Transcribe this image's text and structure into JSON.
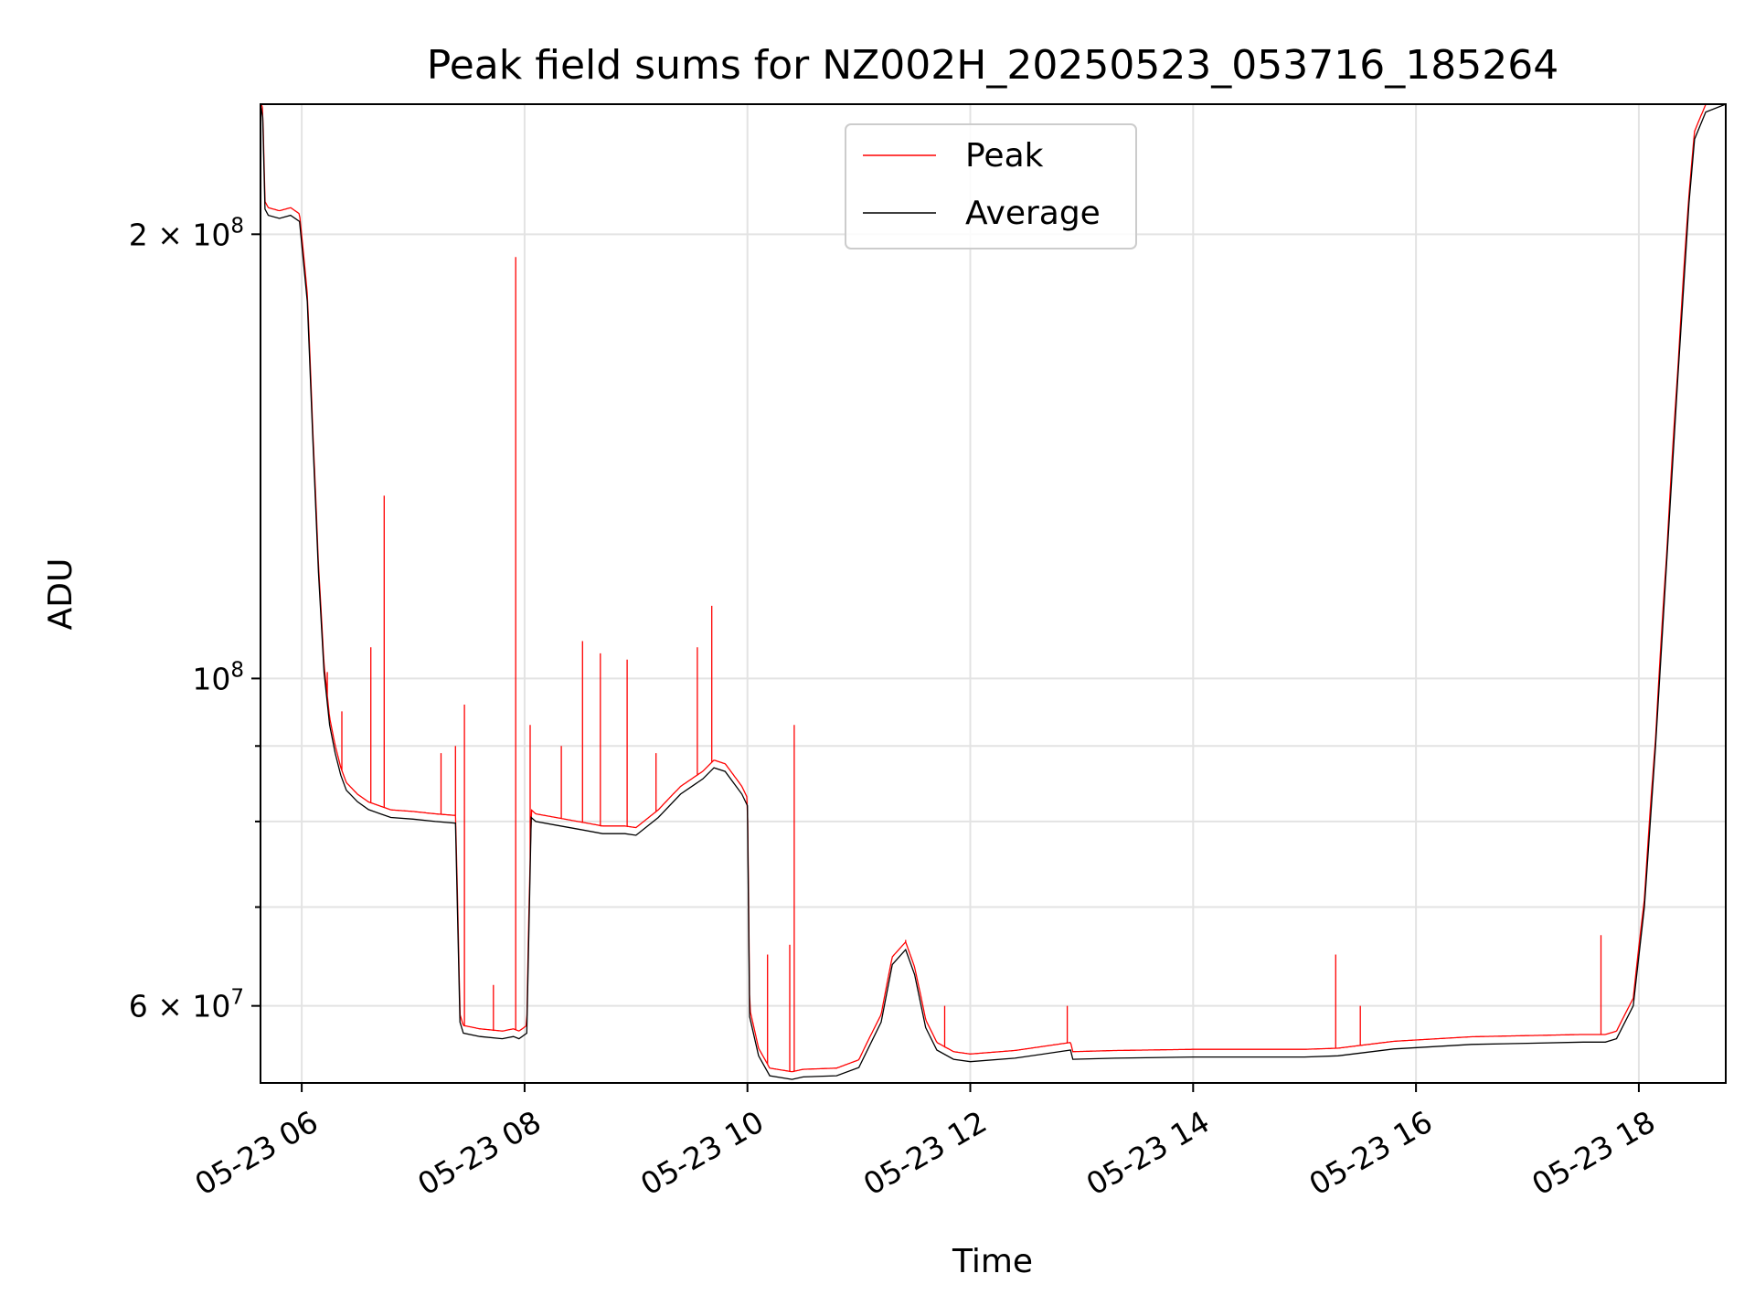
{
  "chart_data": {
    "type": "line",
    "title": "Peak field sums for NZ002H_20250523_053716_185264",
    "xlabel": "Time",
    "ylabel": "ADU",
    "x_unit": "hours of day, 2025-05-23",
    "xlim": [
      5.63,
      18.78
    ],
    "ylim": [
      53200000,
      245000000
    ],
    "yscale": "log",
    "grid": true,
    "legend_position": "top-center",
    "x_ticks": [
      {
        "value": 6,
        "label": "05-23 06"
      },
      {
        "value": 8,
        "label": "05-23 08"
      },
      {
        "value": 10,
        "label": "05-23 10"
      },
      {
        "value": 12,
        "label": "05-23 12"
      },
      {
        "value": 14,
        "label": "05-23 14"
      },
      {
        "value": 16,
        "label": "05-23 16"
      },
      {
        "value": 18,
        "label": "05-23 18"
      }
    ],
    "y_ticks": [
      {
        "value": 200000000,
        "base": "2 × 10",
        "exp": "8"
      },
      {
        "value": 100000000,
        "base": "10",
        "exp": "8"
      },
      {
        "value": 60000000,
        "base": "6 × 10",
        "exp": "7"
      }
    ],
    "y_minor_ticks": [
      70000000,
      80000000,
      90000000
    ],
    "series": [
      {
        "name": "Average",
        "color": "#000000",
        "x": [
          5.63,
          5.65,
          5.67,
          5.7,
          5.8,
          5.9,
          5.98,
          6.05,
          6.1,
          6.15,
          6.2,
          6.25,
          6.3,
          6.35,
          6.4,
          6.5,
          6.6,
          6.7,
          6.8,
          7.0,
          7.2,
          7.38,
          7.42,
          7.45,
          7.6,
          7.8,
          7.9,
          7.95,
          8.02,
          8.06,
          8.1,
          8.3,
          8.5,
          8.7,
          8.9,
          9.0,
          9.2,
          9.4,
          9.6,
          9.7,
          9.8,
          9.95,
          10.0,
          10.02,
          10.1,
          10.2,
          10.4,
          10.5,
          10.8,
          11.0,
          11.2,
          11.3,
          11.42,
          11.5,
          11.6,
          11.7,
          11.85,
          12.0,
          12.4,
          12.9,
          12.92,
          13.3,
          14.0,
          14.5,
          15.0,
          15.3,
          15.8,
          16.5,
          17.0,
          17.5,
          17.7,
          17.8,
          17.95,
          18.05,
          18.15,
          18.25,
          18.35,
          18.45,
          18.5,
          18.6,
          18.78
        ],
        "y": [
          245000000,
          240000000,
          208000000,
          206000000,
          205000000,
          206000000,
          204000000,
          180000000,
          145000000,
          118000000,
          101000000,
          93000000,
          89000000,
          86000000,
          84000000,
          82500000,
          81500000,
          81000000,
          80500000,
          80300000,
          80000000,
          79800000,
          58500000,
          57500000,
          57200000,
          57000000,
          57200000,
          57000000,
          57500000,
          80500000,
          80000000,
          79500000,
          79000000,
          78500000,
          78500000,
          78300000,
          80500000,
          83500000,
          85500000,
          87000000,
          86500000,
          83500000,
          82000000,
          59000000,
          55500000,
          53800000,
          53500000,
          53700000,
          53800000,
          54500000,
          58500000,
          64000000,
          65500000,
          63000000,
          58000000,
          56000000,
          55200000,
          55000000,
          55300000,
          56000000,
          55200000,
          55300000,
          55400000,
          55400000,
          55400000,
          55500000,
          56100000,
          56500000,
          56600000,
          56700000,
          56700000,
          57000000,
          60000000,
          70000000,
          90000000,
          120000000,
          160000000,
          210000000,
          232000000,
          242000000,
          245000000
        ]
      },
      {
        "name": "Peak",
        "color": "#ff0000",
        "spikes": [
          {
            "x": 6.23,
            "y": 101000000
          },
          {
            "x": 6.36,
            "y": 95000000
          },
          {
            "x": 6.62,
            "y": 105000000
          },
          {
            "x": 6.74,
            "y": 133000000
          },
          {
            "x": 7.25,
            "y": 89000000
          },
          {
            "x": 7.38,
            "y": 90000000
          },
          {
            "x": 7.46,
            "y": 96000000
          },
          {
            "x": 7.72,
            "y": 62000000
          },
          {
            "x": 7.92,
            "y": 193000000
          },
          {
            "x": 8.05,
            "y": 93000000
          },
          {
            "x": 8.33,
            "y": 90000000
          },
          {
            "x": 8.52,
            "y": 106000000
          },
          {
            "x": 8.68,
            "y": 104000000
          },
          {
            "x": 8.92,
            "y": 103000000
          },
          {
            "x": 9.18,
            "y": 89000000
          },
          {
            "x": 9.55,
            "y": 105000000
          },
          {
            "x": 9.68,
            "y": 112000000
          },
          {
            "x": 10.18,
            "y": 65000000
          },
          {
            "x": 10.38,
            "y": 66000000
          },
          {
            "x": 10.42,
            "y": 93000000
          },
          {
            "x": 11.42,
            "y": 66500000
          },
          {
            "x": 11.77,
            "y": 60000000
          },
          {
            "x": 12.87,
            "y": 60000000
          },
          {
            "x": 15.28,
            "y": 65000000
          },
          {
            "x": 15.5,
            "y": 60000000
          },
          {
            "x": 17.66,
            "y": 67000000
          }
        ]
      }
    ]
  }
}
